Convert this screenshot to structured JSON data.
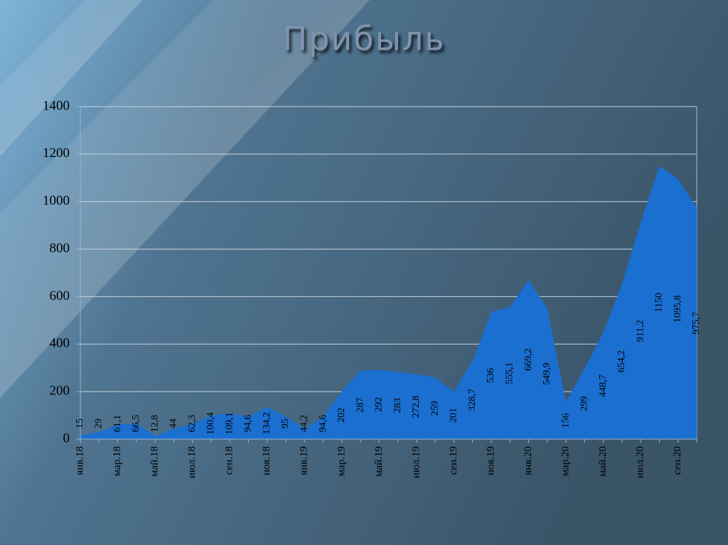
{
  "chart_data": {
    "type": "area",
    "title": "Прибыль",
    "categories": [
      "янв.18",
      null,
      "мар.18",
      null,
      "май.18",
      null,
      "июл.18",
      null,
      "сен.18",
      null,
      "ноя.18",
      null,
      "янв.19",
      null,
      "мар.19",
      null,
      "май.19",
      null,
      "июл.19",
      null,
      "сен.19",
      null,
      "ноя.19",
      null,
      "янв.20",
      null,
      "мар.20",
      null,
      "май.20",
      null,
      "июл.20",
      null,
      "сен.20",
      null
    ],
    "values": [
      15,
      29,
      61.1,
      66.5,
      12.8,
      44,
      62.3,
      100.4,
      109.1,
      94.6,
      134.2,
      95,
      44.2,
      94.6,
      202,
      287,
      292,
      283,
      272.8,
      259,
      201,
      328.7,
      536,
      555.1,
      669.2,
      549.9,
      156,
      299,
      448.7,
      654.2,
      911.2,
      1150,
      1095.8,
      975.7
    ],
    "value_labels": [
      "15",
      "29",
      "61,1",
      "66,5",
      "12,8",
      "44",
      "62,3",
      "100,4",
      "109,1",
      "94,6",
      "134,2",
      "95",
      "44,2",
      "94,6",
      "202",
      "287",
      "292",
      "283",
      "272,8",
      "259",
      "201",
      "328,7",
      "536",
      "555,1",
      "669,2",
      "549,9",
      "156",
      "299",
      "448,7",
      "654,2",
      "911,2",
      "1150",
      "1095,8",
      "975,7"
    ],
    "color": "#1a6fd0",
    "ylim": [
      0,
      1400
    ],
    "yticks": [
      0,
      200,
      400,
      600,
      800,
      1000,
      1200,
      1400
    ],
    "grid": true
  }
}
